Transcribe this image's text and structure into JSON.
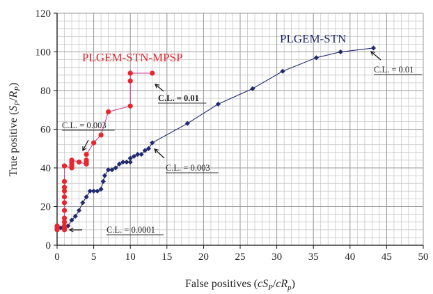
{
  "chart_data": {
    "type": "scatter",
    "xlabel": "False positives (cS_P/cR_p)",
    "ylabel": "True positive (S_P/R_P)",
    "xlim": [
      0,
      50
    ],
    "ylim": [
      0,
      120
    ],
    "xticks": [
      0,
      5,
      10,
      15,
      20,
      25,
      30,
      35,
      40,
      45,
      50
    ],
    "yticks": [
      0,
      20,
      40,
      60,
      80,
      100,
      120
    ],
    "grid": true,
    "series": [
      {
        "name": "PLGEM-STN",
        "color": "#1f2a6e",
        "marker": "diamond",
        "x": [
          0,
          0,
          0.5,
          1,
          1.5,
          2,
          2.5,
          3,
          3.5,
          4,
          4.5,
          5,
          5.5,
          6,
          6.3,
          6.5,
          7,
          7.5,
          8,
          8.5,
          9,
          9.5,
          10,
          10,
          10.5,
          11,
          11.5,
          12,
          12.5,
          13,
          17.8,
          22,
          26.7,
          30.8,
          35.4,
          38.7,
          43.2
        ],
        "y": [
          8,
          9,
          9,
          10,
          10,
          13,
          15,
          18,
          22,
          25,
          28,
          28,
          28,
          29,
          33,
          36,
          39,
          39,
          40,
          42,
          43,
          43,
          43,
          45,
          46,
          47,
          47,
          49,
          50,
          53,
          63,
          73,
          81,
          90,
          97,
          100,
          102
        ]
      },
      {
        "name": "PLGEM-STN-MPSP",
        "color": "#e8262b",
        "marker": "circle",
        "x": [
          0,
          0,
          0,
          1,
          1,
          1,
          1,
          1,
          1,
          1,
          1,
          1,
          1,
          1,
          1,
          1,
          2,
          2,
          2,
          2,
          2,
          3,
          4,
          4,
          4,
          4,
          5,
          6,
          7,
          10,
          10,
          10,
          10,
          13
        ],
        "y": [
          8,
          9,
          10,
          8,
          9,
          10,
          12,
          14,
          18,
          22,
          25,
          28,
          30,
          33,
          41,
          41,
          40,
          41,
          42,
          43,
          44,
          43,
          42,
          43,
          44,
          47,
          53,
          57,
          69,
          72,
          85,
          89,
          89,
          89
        ]
      }
    ],
    "annotations": [
      {
        "text": "PLGEM-STN",
        "color": "#1f2a6e"
      },
      {
        "text": "PLGEM-STN-MPSP",
        "color": "#e8262b"
      },
      {
        "text": "C.L. = 0.01"
      },
      {
        "text": "C.L. = 0.01"
      },
      {
        "text": "C.L. = 0.003"
      },
      {
        "text": "C.L. = 0.003"
      },
      {
        "text": "C.L. = 0.0001"
      }
    ]
  }
}
